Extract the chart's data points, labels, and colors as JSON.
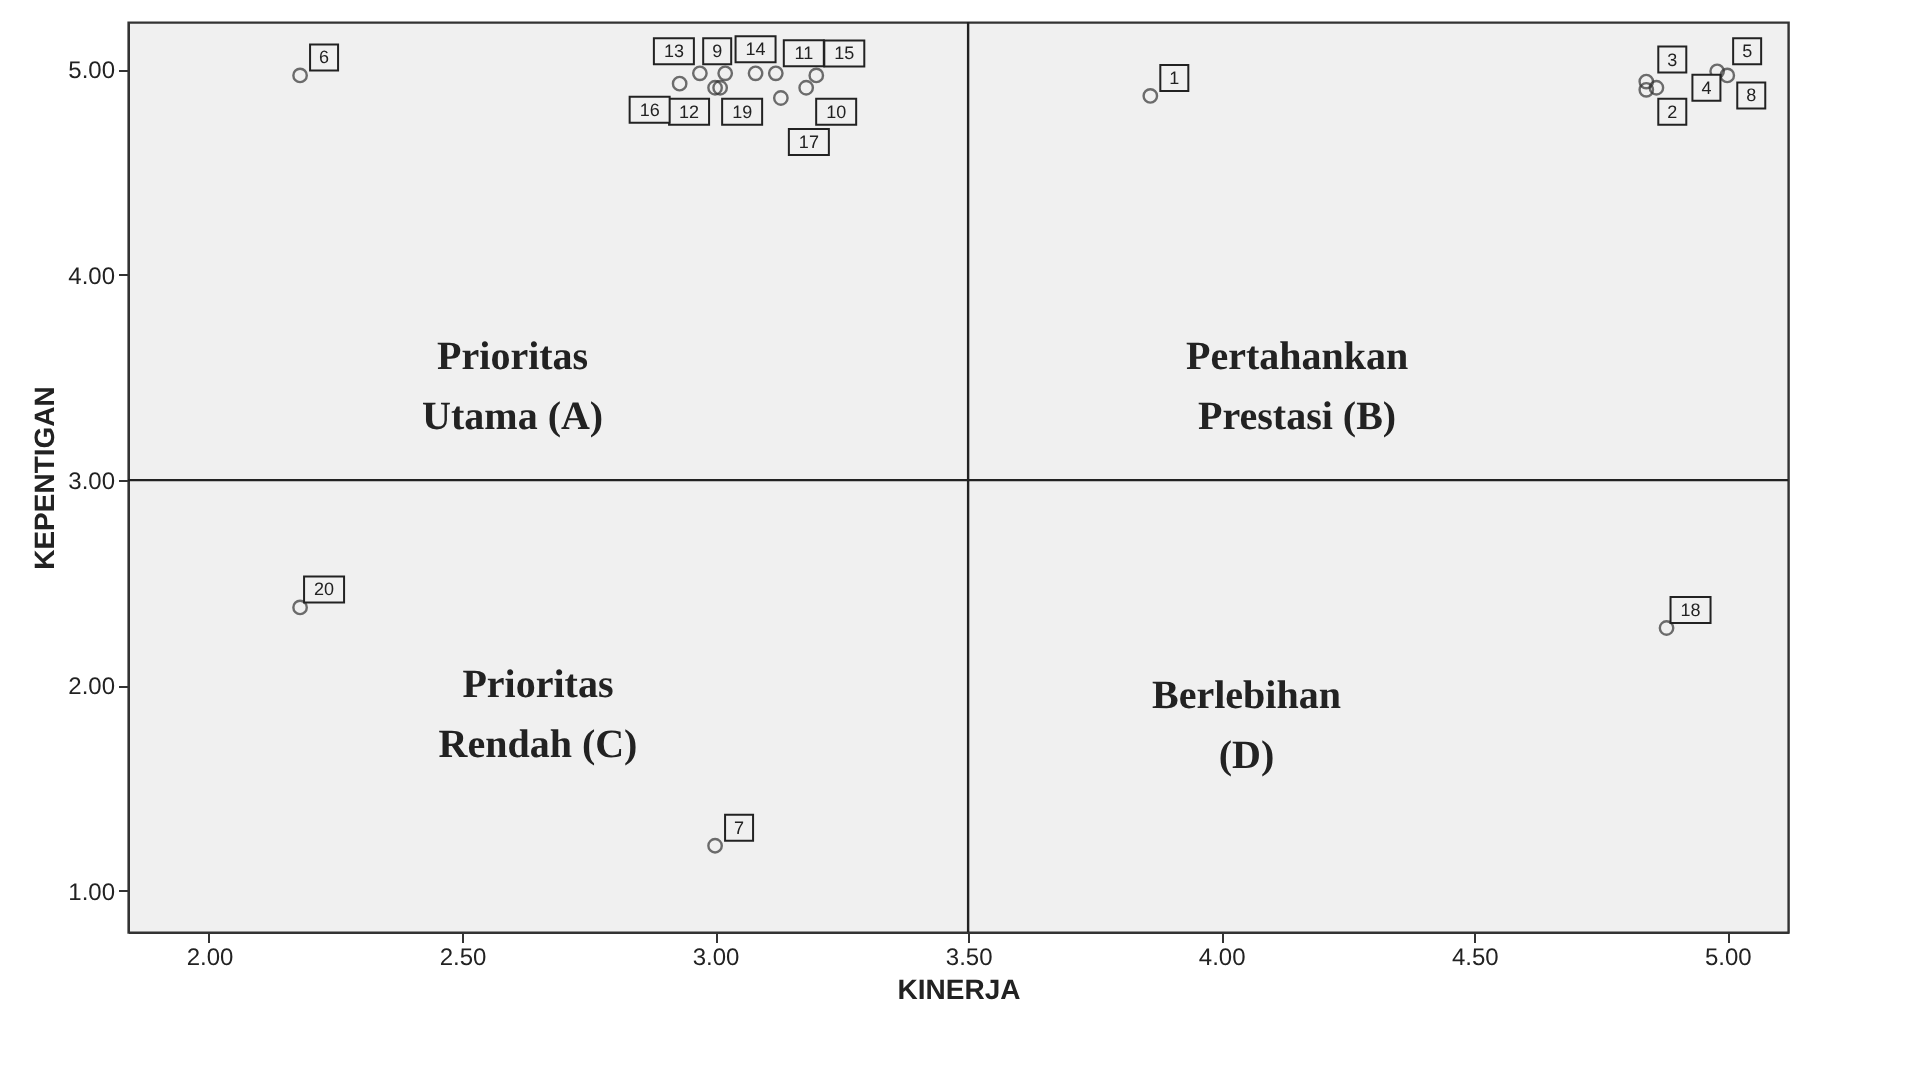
{
  "chart_data": {
    "type": "scatter",
    "xlabel": "KINERJA",
    "ylabel": "KEPENTIGAN",
    "x": [
      3.86,
      4.84,
      4.84,
      4.86,
      4.98,
      2.18,
      3.0,
      5.0,
      3.02,
      3.18,
      3.12,
      3.0,
      2.97,
      3.08,
      3.2,
      2.93,
      3.13,
      4.88,
      3.01,
      2.18
    ],
    "values": [
      4.87,
      4.9,
      4.94,
      4.91,
      4.99,
      4.97,
      1.22,
      4.97,
      4.98,
      4.91,
      4.98,
      4.91,
      4.98,
      4.98,
      4.97,
      4.93,
      4.86,
      2.28,
      4.91,
      2.38
    ],
    "color": "#333333",
    "marker": "circle",
    "xlim": [
      1.84,
      5.12
    ],
    "ylim": [
      0.8,
      5.23
    ],
    "xticks": [
      {
        "value": 2,
        "label": "2.00"
      },
      {
        "value": 2.5,
        "label": "2.50"
      },
      {
        "value": 3,
        "label": "3.00"
      },
      {
        "value": 3.5,
        "label": "3.50"
      },
      {
        "value": 4,
        "label": "4.00"
      },
      {
        "value": 4.5,
        "label": "4.50"
      },
      {
        "value": 5,
        "label": "5.00"
      }
    ],
    "yticks": [
      {
        "value": 1,
        "label": "1.00"
      },
      {
        "value": 2,
        "label": "2.00"
      },
      {
        "value": 3,
        "label": "3.00"
      },
      {
        "value": 4,
        "label": "4.00"
      },
      {
        "value": 5,
        "label": "5.00"
      }
    ],
    "ref_lines": [
      {
        "axis": "x",
        "value": 3.5
      },
      {
        "axis": "y",
        "value": 3.0
      }
    ],
    "annotations": [
      {
        "text": "1",
        "x": 3.86,
        "y": 4.87
      },
      {
        "text": "2",
        "x": 4.84,
        "y": 4.9
      },
      {
        "text": "3",
        "x": 4.84,
        "y": 4.94
      },
      {
        "text": "4",
        "x": 4.86,
        "y": 4.91
      },
      {
        "text": "5",
        "x": 4.98,
        "y": 4.99
      },
      {
        "text": "6",
        "x": 2.18,
        "y": 4.97
      },
      {
        "text": "7",
        "x": 3.0,
        "y": 1.22
      },
      {
        "text": "8",
        "x": 5.0,
        "y": 4.97
      },
      {
        "text": "9",
        "x": 3.02,
        "y": 4.98
      },
      {
        "text": "10",
        "x": 3.18,
        "y": 4.91
      },
      {
        "text": "11",
        "x": 3.12,
        "y": 4.98
      },
      {
        "text": "12",
        "x": 3.0,
        "y": 4.91
      },
      {
        "text": "13",
        "x": 2.97,
        "y": 4.98
      },
      {
        "text": "14",
        "x": 3.08,
        "y": 4.98
      },
      {
        "text": "15",
        "x": 3.2,
        "y": 4.97
      },
      {
        "text": "16",
        "x": 2.93,
        "y": 4.93
      },
      {
        "text": "17",
        "x": 3.13,
        "y": 4.86
      },
      {
        "text": "18",
        "x": 4.88,
        "y": 2.28
      },
      {
        "text": "19",
        "x": 3.01,
        "y": 4.91
      },
      {
        "text": "20",
        "x": 2.18,
        "y": 2.38
      },
      "Prioritas\nUtama  (A)",
      "Pertahankan\nPrestasi  (B)",
      "Prioritas\nRendah  (C)",
      "Berlebihan\n(D)"
    ],
    "grid": false
  }
}
